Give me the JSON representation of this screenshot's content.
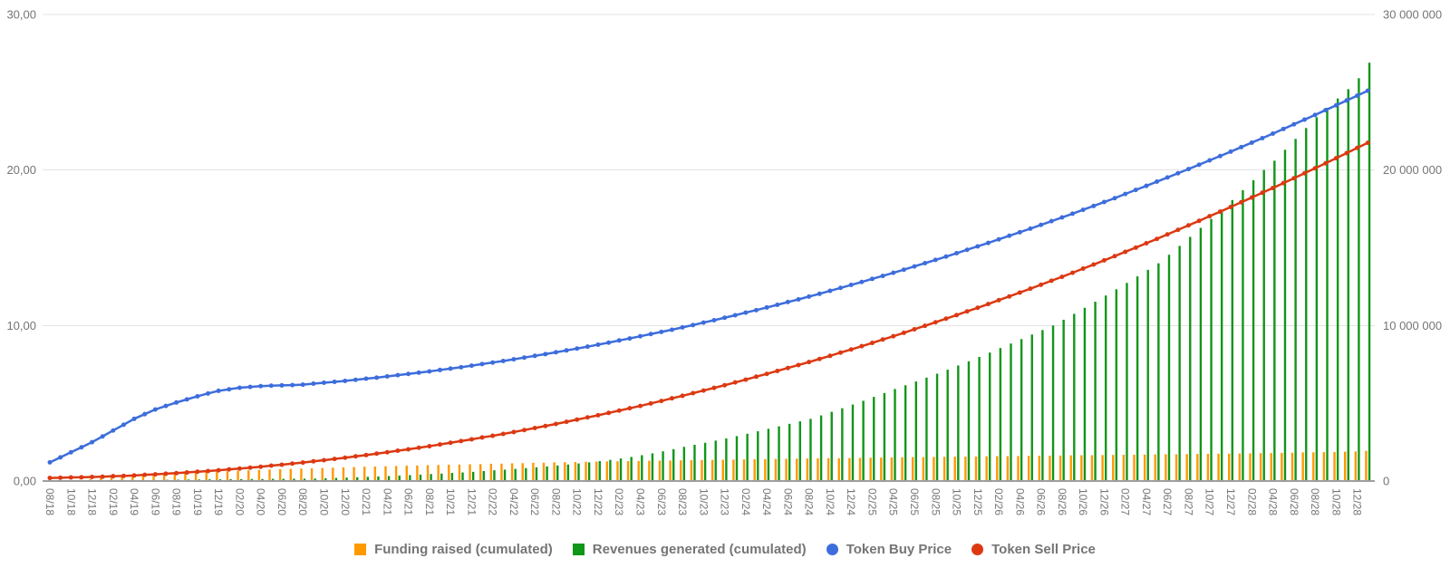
{
  "chart_data": {
    "type": "combo",
    "title": "",
    "x_tick_labels": [
      "08/18",
      "10/18",
      "12/18",
      "02/19",
      "04/19",
      "06/19",
      "08/19",
      "10/19",
      "12/19",
      "02/20",
      "04/20",
      "06/20",
      "08/20",
      "10/20",
      "12/20",
      "02/21",
      "04/21",
      "06/21",
      "08/21",
      "10/21",
      "12/21",
      "02/22",
      "04/22",
      "06/22",
      "08/22",
      "10/22",
      "12/22",
      "02/23",
      "04/23",
      "06/23",
      "08/23",
      "10/23",
      "12/23",
      "02/24",
      "04/24",
      "06/24",
      "08/24",
      "10/24",
      "12/24",
      "02/25",
      "04/25",
      "06/25",
      "08/25",
      "10/25",
      "12/25",
      "02/26",
      "04/26",
      "06/26",
      "08/26",
      "10/26",
      "12/26",
      "02/27",
      "04/27",
      "06/27",
      "08/27",
      "10/27",
      "12/27",
      "02/28",
      "04/28",
      "06/28",
      "08/28",
      "10/28",
      "12/28"
    ],
    "label_every_n_points": 2,
    "points_count": 126,
    "left_axis": {
      "ticks": [
        "0,00",
        "10,00",
        "20,00",
        "30,00"
      ],
      "min": 0,
      "max": 30
    },
    "right_axis": {
      "ticks": [
        "0",
        "10 000 000",
        "20 000 000",
        "30 000 000"
      ],
      "min": 0,
      "max": 30000000,
      "bar_value_unit": "millions"
    },
    "series": [
      {
        "name": "Funding raised (cumulated)",
        "type": "bar",
        "axis": "right",
        "color": "#FF9900",
        "values": [
          0.01,
          0.02,
          0.04,
          0.08,
          0.12,
          0.18,
          0.25,
          0.33,
          0.4,
          0.44,
          0.48,
          0.51,
          0.53,
          0.55,
          0.56,
          0.58,
          0.6,
          0.63,
          0.66,
          0.69,
          0.72,
          0.74,
          0.76,
          0.78,
          0.8,
          0.82,
          0.84,
          0.86,
          0.88,
          0.9,
          0.92,
          0.93,
          0.95,
          0.97,
          0.99,
          1.0,
          1.02,
          1.03,
          1.05,
          1.06,
          1.08,
          1.09,
          1.11,
          1.12,
          1.14,
          1.15,
          1.17,
          1.18,
          1.2,
          1.21,
          1.22,
          1.24,
          1.25,
          1.26,
          1.27,
          1.28,
          1.29,
          1.3,
          1.31,
          1.32,
          1.33,
          1.34,
          1.35,
          1.36,
          1.37,
          1.38,
          1.39,
          1.4,
          1.41,
          1.42,
          1.43,
          1.44,
          1.45,
          1.46,
          1.47,
          1.47,
          1.48,
          1.49,
          1.5,
          1.51,
          1.52,
          1.53,
          1.54,
          1.54,
          1.55,
          1.56,
          1.57,
          1.57,
          1.58,
          1.59,
          1.6,
          1.6,
          1.61,
          1.62,
          1.63,
          1.63,
          1.64,
          1.65,
          1.66,
          1.66,
          1.67,
          1.68,
          1.69,
          1.69,
          1.7,
          1.71,
          1.72,
          1.72,
          1.73,
          1.74,
          1.75,
          1.76,
          1.76,
          1.77,
          1.78,
          1.79,
          1.8,
          1.81,
          1.82,
          1.84,
          1.85,
          1.86,
          1.87,
          1.89,
          1.9,
          1.94
        ]
      },
      {
        "name": "Revenues generated (cumulated)",
        "type": "bar",
        "axis": "right",
        "color": "#109618",
        "values": [
          0,
          0,
          0,
          0,
          0.001,
          0.002,
          0.01,
          0.02,
          0.03,
          0.04,
          0.06,
          0.08,
          0.09,
          0.1,
          0.1,
          0.11,
          0.11,
          0.12,
          0.12,
          0.13,
          0.13,
          0.14,
          0.14,
          0.15,
          0.15,
          0.16,
          0.18,
          0.2,
          0.22,
          0.245,
          0.27,
          0.295,
          0.32,
          0.35,
          0.38,
          0.41,
          0.45,
          0.48,
          0.52,
          0.55,
          0.59,
          0.64,
          0.69,
          0.73,
          0.78,
          0.83,
          0.88,
          0.94,
          1.0,
          1.06,
          1.13,
          1.2,
          1.28,
          1.36,
          1.45,
          1.55,
          1.66,
          1.78,
          1.91,
          2.05,
          2.2,
          2.33,
          2.46,
          2.6,
          2.74,
          2.89,
          3.04,
          3.2,
          3.36,
          3.52,
          3.68,
          3.84,
          4.0,
          4.22,
          4.45,
          4.68,
          4.92,
          5.16,
          5.41,
          5.66,
          5.92,
          6.16,
          6.4,
          6.65,
          6.9,
          7.16,
          7.43,
          7.7,
          7.98,
          8.26,
          8.55,
          8.84,
          9.13,
          9.42,
          9.71,
          10.0,
          10.37,
          10.75,
          11.14,
          11.53,
          11.93,
          12.33,
          12.74,
          13.16,
          13.58,
          14.0,
          14.55,
          15.12,
          15.7,
          16.28,
          16.86,
          17.46,
          18.07,
          18.7,
          19.34,
          20.0,
          20.6,
          21.3,
          22.0,
          22.7,
          23.4,
          24.0,
          24.6,
          25.2,
          25.9,
          26.9
        ]
      },
      {
        "name": "Token Buy Price",
        "type": "line",
        "axis": "left",
        "color": "#3D6DDC",
        "values": [
          1.2,
          1.52,
          1.85,
          2.17,
          2.5,
          2.87,
          3.25,
          3.62,
          4.0,
          4.3,
          4.6,
          4.83,
          5.05,
          5.25,
          5.45,
          5.63,
          5.8,
          5.9,
          6.0,
          6.05,
          6.1,
          6.13,
          6.15,
          6.17,
          6.2,
          6.26,
          6.32,
          6.38,
          6.44,
          6.51,
          6.58,
          6.65,
          6.73,
          6.81,
          6.89,
          6.97,
          7.05,
          7.14,
          7.23,
          7.32,
          7.42,
          7.52,
          7.62,
          7.72,
          7.83,
          7.94,
          8.05,
          8.16,
          8.28,
          8.4,
          8.52,
          8.64,
          8.77,
          8.9,
          9.04,
          9.17,
          9.31,
          9.45,
          9.59,
          9.73,
          9.88,
          10.03,
          10.19,
          10.34,
          10.5,
          10.66,
          10.83,
          10.99,
          11.16,
          11.33,
          11.51,
          11.68,
          11.86,
          12.04,
          12.23,
          12.42,
          12.61,
          12.8,
          13.0,
          13.19,
          13.39,
          13.59,
          13.8,
          14.01,
          14.22,
          14.43,
          14.65,
          14.87,
          15.09,
          15.31,
          15.54,
          15.77,
          16.0,
          16.23,
          16.47,
          16.71,
          16.95,
          17.19,
          17.44,
          17.69,
          17.94,
          18.19,
          18.46,
          18.72,
          18.98,
          19.25,
          19.52,
          19.79,
          20.06,
          20.34,
          20.62,
          20.9,
          21.18,
          21.47,
          21.76,
          22.05,
          22.34,
          22.64,
          22.94,
          23.24,
          23.54,
          23.85,
          24.16,
          24.47,
          24.78,
          25.1
        ]
      },
      {
        "name": "Token Sell Price",
        "type": "line",
        "axis": "left",
        "color": "#DC3912",
        "values": [
          0.2,
          0.21,
          0.23,
          0.24,
          0.26,
          0.28,
          0.31,
          0.33,
          0.36,
          0.4,
          0.43,
          0.47,
          0.51,
          0.55,
          0.6,
          0.64,
          0.69,
          0.75,
          0.8,
          0.86,
          0.92,
          0.99,
          1.05,
          1.12,
          1.19,
          1.27,
          1.34,
          1.42,
          1.5,
          1.59,
          1.67,
          1.76,
          1.85,
          1.95,
          2.04,
          2.14,
          2.24,
          2.35,
          2.46,
          2.57,
          2.68,
          2.8,
          2.91,
          3.03,
          3.15,
          3.28,
          3.41,
          3.54,
          3.67,
          3.81,
          3.95,
          4.09,
          4.23,
          4.38,
          4.53,
          4.68,
          4.83,
          4.99,
          5.15,
          5.32,
          5.48,
          5.65,
          5.82,
          5.99,
          6.16,
          6.34,
          6.52,
          6.71,
          6.89,
          7.08,
          7.27,
          7.46,
          7.65,
          7.85,
          8.05,
          8.26,
          8.46,
          8.67,
          8.88,
          9.1,
          9.31,
          9.53,
          9.76,
          9.98,
          10.21,
          10.44,
          10.67,
          10.91,
          11.14,
          11.38,
          11.63,
          11.87,
          12.12,
          12.37,
          12.62,
          12.88,
          13.13,
          13.39,
          13.66,
          13.92,
          14.19,
          14.46,
          14.74,
          15.01,
          15.29,
          15.57,
          15.86,
          16.15,
          16.44,
          16.73,
          17.03,
          17.32,
          17.62,
          17.93,
          18.23,
          18.54,
          18.84,
          19.16,
          19.47,
          19.79,
          20.11,
          20.43,
          20.76,
          21.09,
          21.42,
          21.75
        ]
      }
    ],
    "legend": [
      {
        "label": "Funding raised (cumulated)",
        "color": "#FF9900",
        "shape": "square"
      },
      {
        "label": "Revenues generated (cumulated)",
        "color": "#109618",
        "shape": "square"
      },
      {
        "label": "Token Buy Price",
        "color": "#3D6DDC",
        "shape": "circle"
      },
      {
        "label": "Token Sell Price",
        "color": "#DC3912",
        "shape": "circle"
      }
    ],
    "grid": {
      "line_color": "#e3e3e3",
      "baseline_color": "#9e9e9e",
      "label_color": "#757575"
    }
  }
}
